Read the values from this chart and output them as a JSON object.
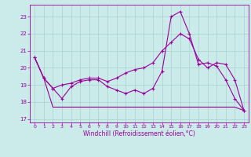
{
  "bg_color": "#cbeaea",
  "grid_color": "#aacfcf",
  "line_color": "#990099",
  "xlabel": "Windchill (Refroidissement éolien,°C)",
  "xlim_min": -0.5,
  "xlim_max": 23.5,
  "ylim_min": 16.8,
  "ylim_max": 23.7,
  "yticks": [
    17,
    18,
    19,
    20,
    21,
    22,
    23
  ],
  "xticks": [
    0,
    1,
    2,
    3,
    4,
    5,
    6,
    7,
    8,
    9,
    10,
    11,
    12,
    13,
    14,
    15,
    16,
    17,
    18,
    19,
    20,
    21,
    22,
    23
  ],
  "line1_x": [
    0,
    1,
    2,
    3,
    4,
    5,
    6,
    7,
    8,
    9,
    10,
    11,
    12,
    13,
    14,
    15,
    16,
    17,
    18,
    19,
    20,
    21,
    22,
    23
  ],
  "line1_y": [
    20.6,
    19.4,
    18.8,
    19.0,
    19.1,
    19.3,
    19.4,
    19.4,
    19.2,
    19.4,
    19.7,
    19.9,
    20.0,
    20.3,
    21.0,
    21.5,
    22.0,
    21.7,
    20.5,
    20.0,
    20.3,
    20.2,
    19.3,
    17.5
  ],
  "line2_x": [
    0,
    1,
    2,
    3,
    4,
    5,
    6,
    7,
    8,
    9,
    10,
    11,
    12,
    13,
    14,
    15,
    16,
    17,
    18,
    19,
    20,
    21,
    22,
    23
  ],
  "line2_y": [
    20.6,
    19.4,
    18.8,
    18.2,
    18.9,
    19.2,
    19.3,
    19.3,
    18.9,
    18.7,
    18.5,
    18.7,
    18.5,
    18.8,
    19.8,
    23.0,
    23.3,
    22.0,
    20.2,
    20.3,
    20.1,
    19.3,
    18.2,
    17.5
  ],
  "line3_x": [
    0,
    1,
    2,
    3,
    4,
    5,
    6,
    7,
    8,
    9,
    10,
    11,
    12,
    13,
    14,
    15,
    16,
    17,
    18,
    19,
    20,
    21,
    22,
    23
  ],
  "line3_y": [
    20.6,
    19.4,
    17.7,
    17.7,
    17.7,
    17.7,
    17.7,
    17.7,
    17.7,
    17.7,
    17.7,
    17.7,
    17.7,
    17.7,
    17.7,
    17.7,
    17.7,
    17.7,
    17.7,
    17.7,
    17.7,
    17.7,
    17.7,
    17.5
  ]
}
